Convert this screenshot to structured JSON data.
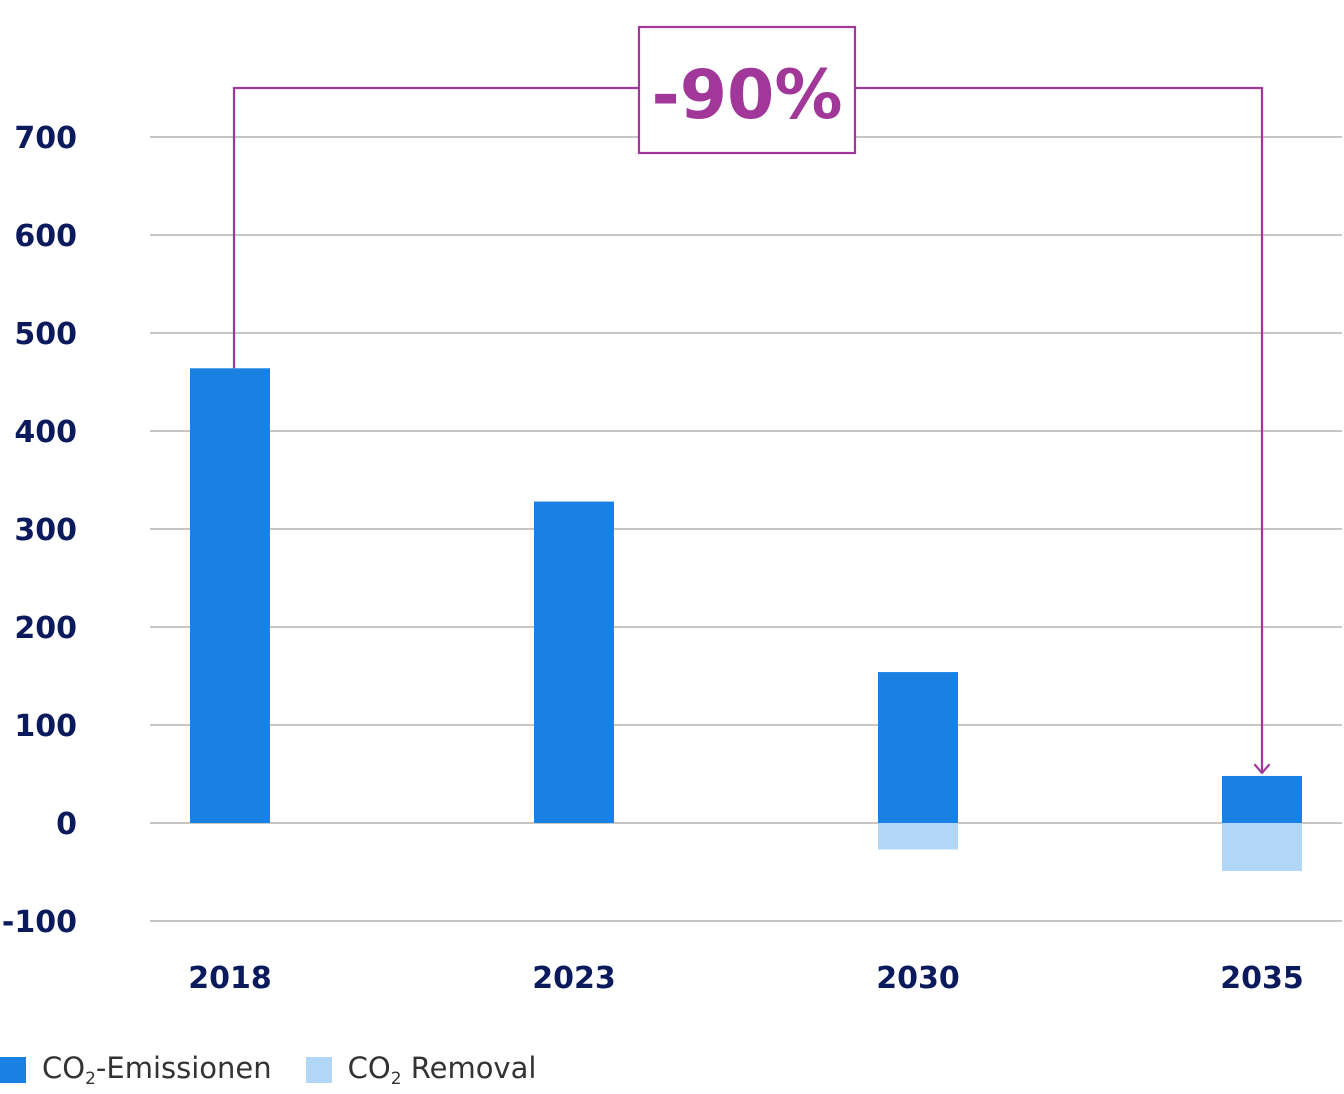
{
  "chart_data": {
    "type": "bar",
    "categories": [
      "2018",
      "2023",
      "2030",
      "2035"
    ],
    "series": [
      {
        "name": "CO2-Emissionen",
        "label_main": "CO",
        "label_sub": "2",
        "label_rest": "-Emissionen",
        "color": "#1a80e2",
        "values": [
          464,
          328,
          154,
          48
        ]
      },
      {
        "name": "CO2 Removal",
        "label_main": "CO",
        "label_sub": "2",
        "label_rest": " Removal",
        "color": "#b2d6f5",
        "values": [
          0,
          0,
          -27,
          -49
        ]
      }
    ],
    "yticks": [
      "700",
      "600",
      "500",
      "400",
      "300",
      "200",
      "100",
      "0",
      "-100"
    ],
    "ylim": [
      -100,
      700
    ],
    "grid": true,
    "legend_position": "bottom-left",
    "annotation": {
      "text": "-90%",
      "from": "2018",
      "to": "2035",
      "color": "#a2379a"
    }
  }
}
